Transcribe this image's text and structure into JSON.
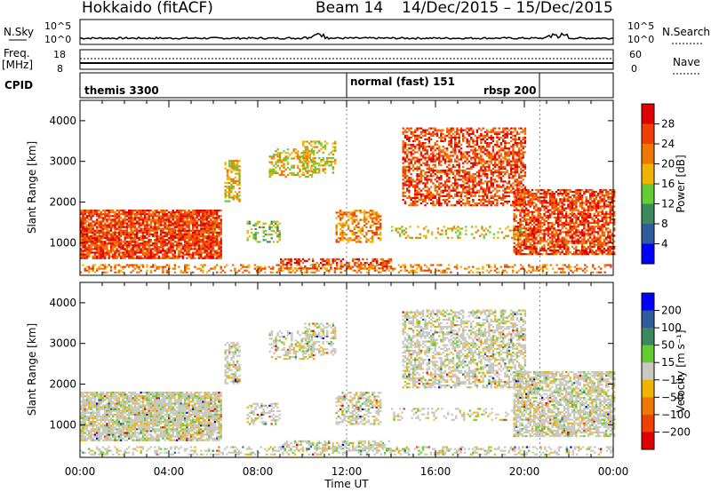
{
  "header": {
    "station": "Hokkaido (fitACF)",
    "beam": "Beam 14",
    "date_range": "14/Dec/2015 – 15/Dec/2015"
  },
  "summary_panels": {
    "nsky": {
      "label": "N.Sky",
      "ticks": [
        "10^5",
        "10^0"
      ],
      "right_ticks": [
        "10^5",
        "10^0"
      ],
      "right_label": "N.Search"
    },
    "freq": {
      "label": "Freq.",
      "unit": "[MHz]",
      "ticks": [
        "18",
        "8"
      ],
      "right_ticks": [
        "60",
        "0"
      ],
      "right_label": "Nave"
    },
    "cpid": {
      "label": "CPID",
      "modes": [
        "themis 3300",
        "normal (fast) 151",
        "rbsp 200"
      ],
      "mode_start_hours": [
        0,
        12,
        20.7
      ]
    }
  },
  "colors": {
    "power": [
      "#0000ff",
      "#2e5c9e",
      "#3a8a5c",
      "#66cc33",
      "#f0b400",
      "#f07800",
      "#f04000",
      "#e00000"
    ],
    "velocity": [
      "#e00000",
      "#f04000",
      "#f07800",
      "#f0b400",
      "#c8c8c0",
      "#66cc33",
      "#3a8a5c",
      "#2e5c9e",
      "#0000ff"
    ]
  },
  "chart_data": [
    {
      "type": "heatmap",
      "name": "power",
      "ylabel": "Slant Range [km]",
      "xlabel": "",
      "x_ticks": [
        "00:00",
        "04:00",
        "08:00",
        "12:00",
        "16:00",
        "20:00",
        "00:00"
      ],
      "xlim_hours": [
        0,
        24
      ],
      "ylim": [
        200,
        4500
      ],
      "y_ticks": [
        1000,
        2000,
        3000,
        4000
      ],
      "colorbar": {
        "label": "Power [dB]",
        "ticks": [
          "28",
          "24",
          "20",
          "16",
          "12",
          "8",
          "4"
        ],
        "range": [
          0,
          32
        ]
      }
    },
    {
      "type": "heatmap",
      "name": "velocity",
      "ylabel": "Slant Range [km]",
      "xlabel": "Time UT",
      "x_ticks": [
        "00:00",
        "04:00",
        "08:00",
        "12:00",
        "16:00",
        "20:00",
        "00:00"
      ],
      "xlim_hours": [
        0,
        24
      ],
      "ylim": [
        200,
        4500
      ],
      "y_ticks": [
        1000,
        2000,
        3000,
        4000
      ],
      "colorbar": {
        "label": "Velocity [m s⁻¹]",
        "ticks": [
          "200",
          "100",
          "50",
          "15",
          "−15",
          "−50",
          "−100",
          "−200"
        ],
        "range": [
          -250,
          250
        ]
      }
    }
  ]
}
